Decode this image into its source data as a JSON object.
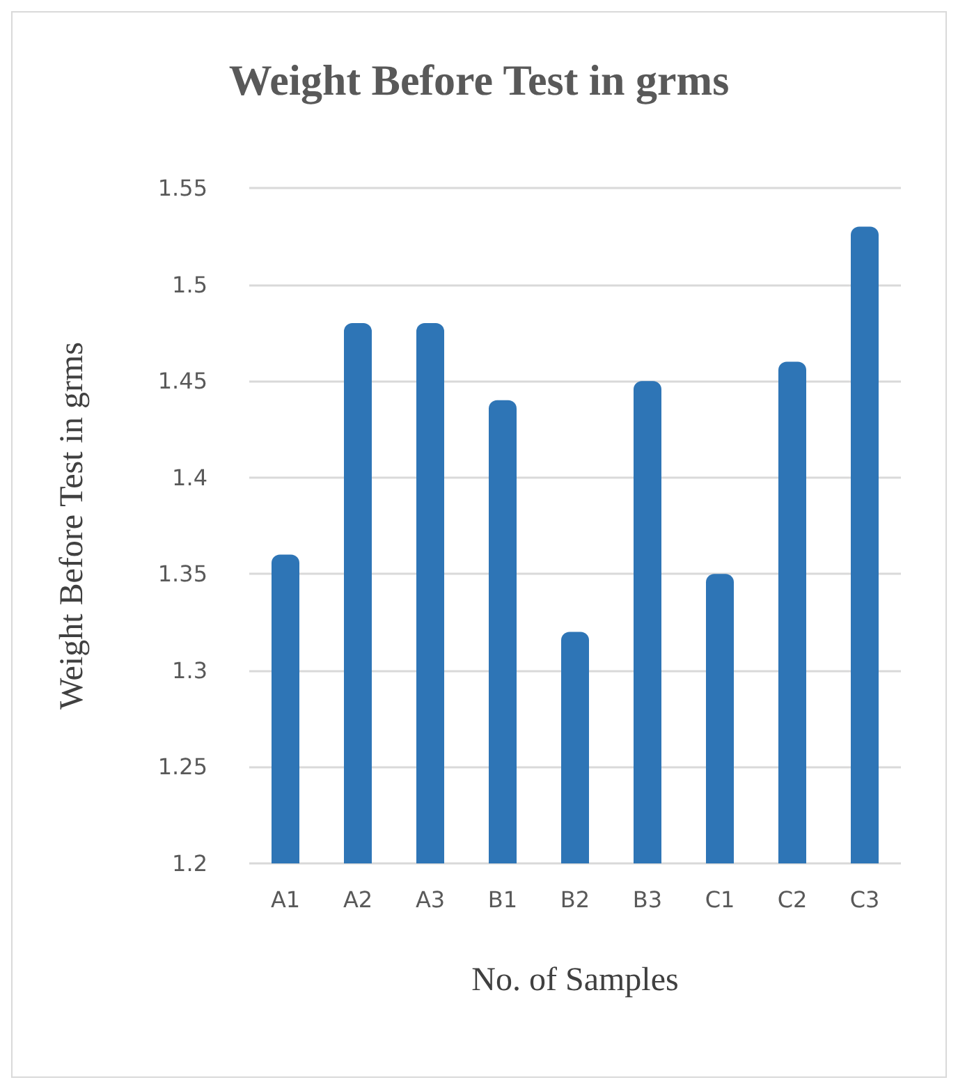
{
  "chart_data": {
    "type": "bar",
    "title": "Weight Before Test in grms",
    "xlabel": "No. of Samples",
    "ylabel": "Weight Before Test in grms",
    "categories": [
      "A1",
      "A2",
      "A3",
      "B1",
      "B2",
      "B3",
      "C1",
      "C2",
      "C3"
    ],
    "values": [
      1.36,
      1.48,
      1.48,
      1.44,
      1.32,
      1.45,
      1.35,
      1.46,
      1.53
    ],
    "color": "#2e75b6",
    "ylim": [
      1.2,
      1.55
    ],
    "yticks": [
      1.2,
      1.25,
      1.3,
      1.35,
      1.4,
      1.45,
      1.5,
      1.55
    ],
    "grid": "y"
  }
}
